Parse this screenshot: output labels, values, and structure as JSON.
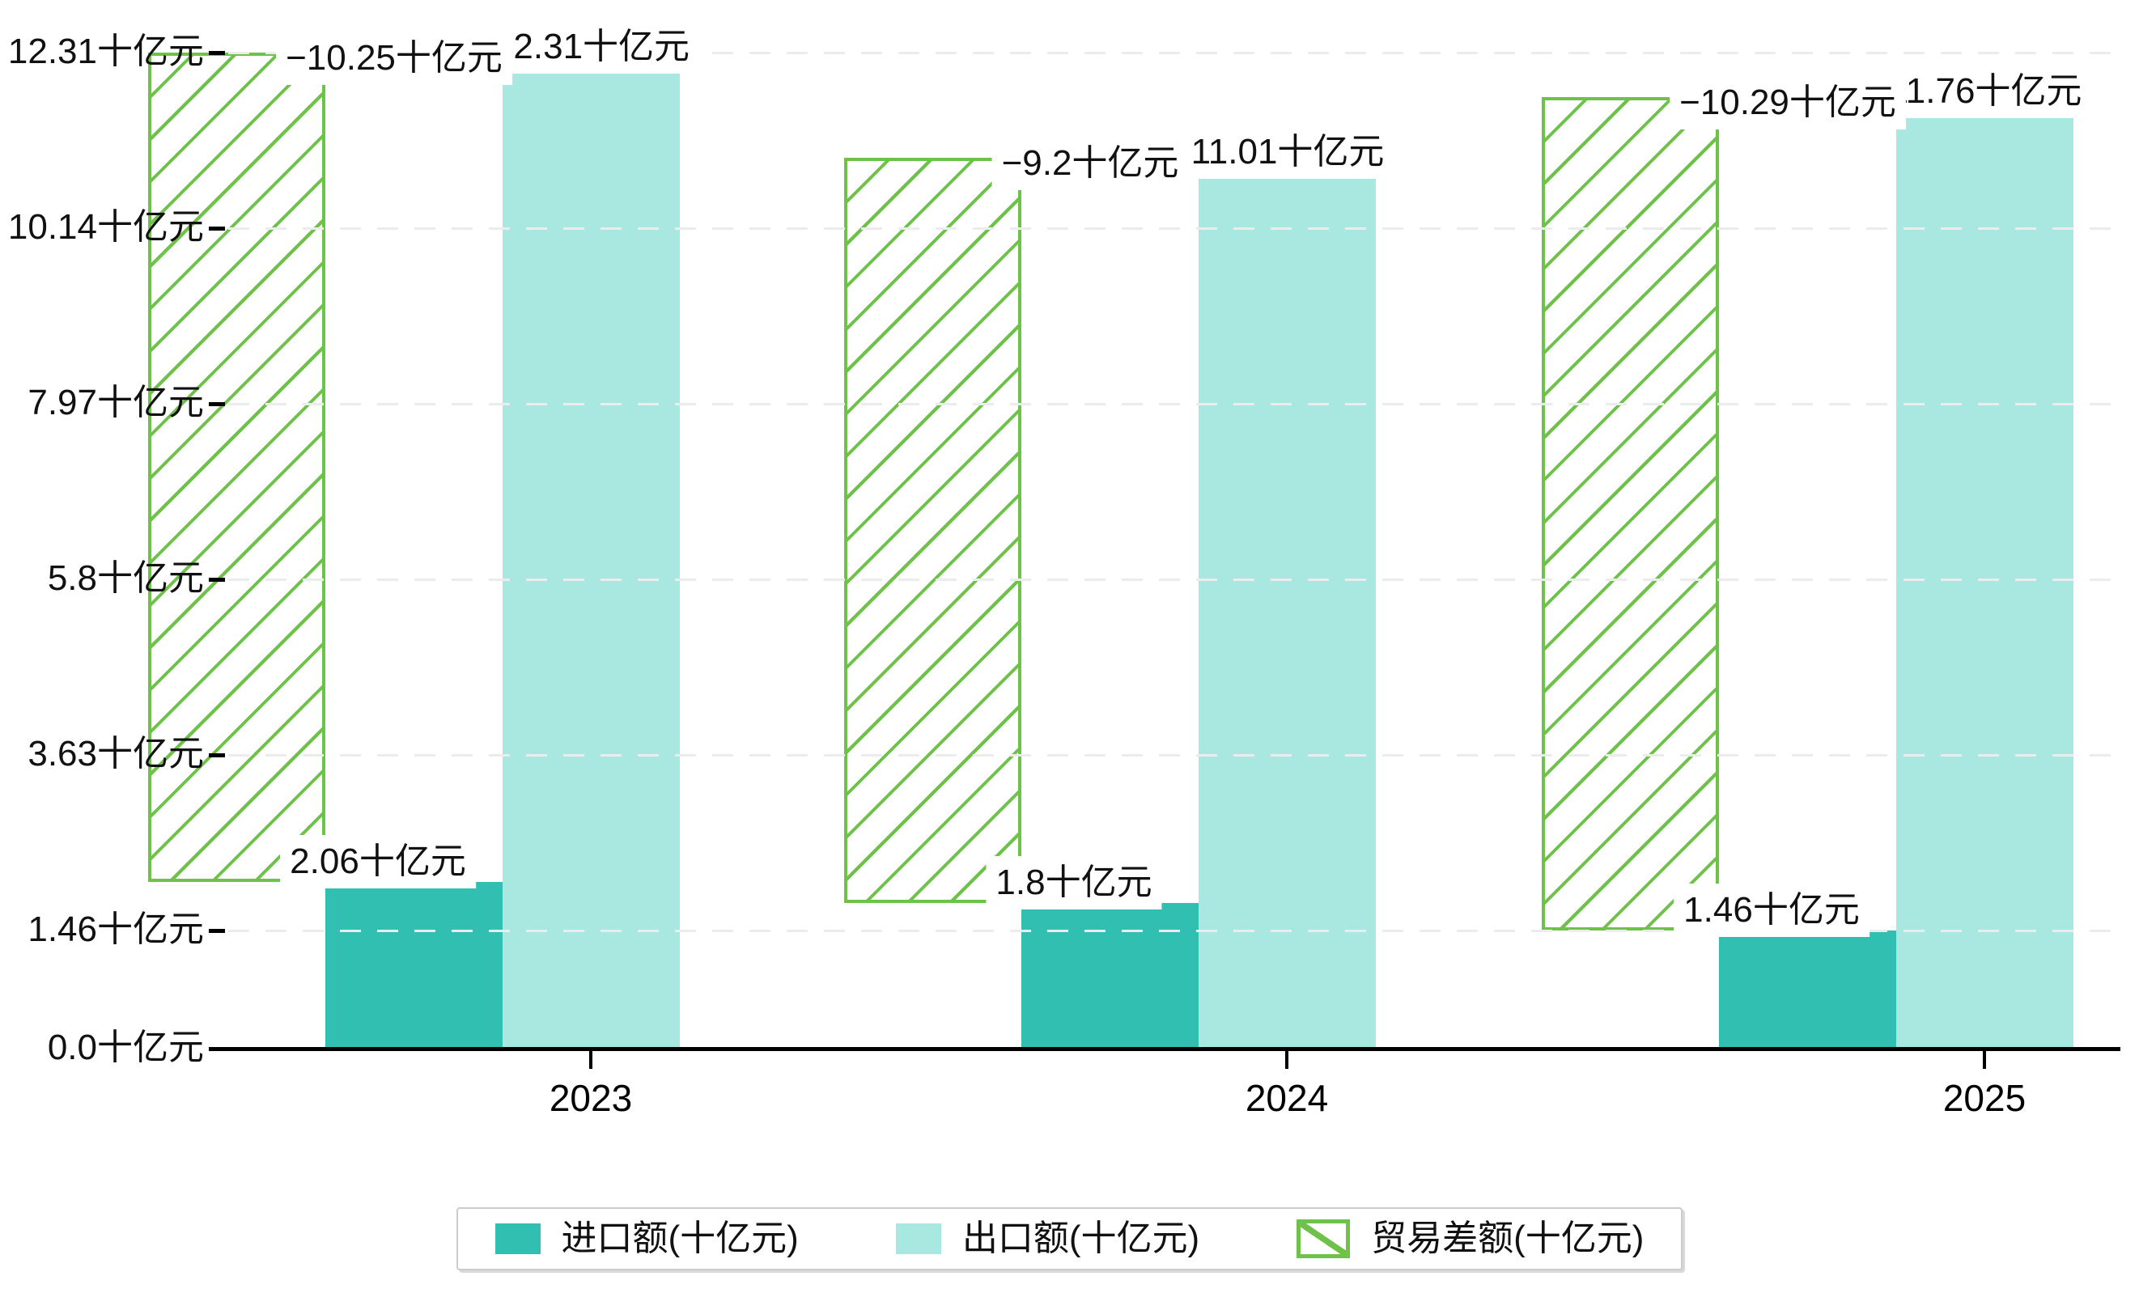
{
  "chart_data": {
    "type": "bar",
    "title": "",
    "categories": [
      "2023",
      "2024",
      "2025"
    ],
    "series": [
      {
        "name": "进口额(十亿元)",
        "role": "import",
        "values": [
          2.06,
          1.8,
          1.46
        ],
        "labels": [
          "2.06十亿元",
          "1.8十亿元",
          "1.46十亿元"
        ],
        "color": "#31bfb2",
        "pattern": "solid"
      },
      {
        "name": "出口额(十亿元)",
        "role": "export",
        "values": [
          12.31,
          11.01,
          11.76
        ],
        "labels": [
          "12.31十亿元",
          "11.01十亿元",
          "11.76十亿元"
        ],
        "labels_visible_after_overlap": [
          ".31十亿元",
          "1.01十亿元",
          ".76十亿元"
        ],
        "color": "#a9e8e0",
        "pattern": "solid"
      },
      {
        "name": "贸易差额(十亿元)",
        "role": "balance",
        "values": [
          -10.25,
          -9.2,
          -10.29
        ],
        "labels": [
          "−10.25十亿元",
          "−9.2十亿元",
          "−10.29十亿元"
        ],
        "color": "#6ec149",
        "pattern": "diagonal-hatch",
        "bar_style": "floating bar spanning from import bar top to export bar top, white fill with green / hatching and green border"
      }
    ],
    "y_axis": {
      "range": [
        0,
        12.31
      ],
      "gridlines": "dashed-horizontal-light-gray",
      "ticks": [
        {
          "value": 0,
          "label": "0.0十亿元"
        },
        {
          "value": 1.46,
          "label": "1.46十亿元"
        },
        {
          "value": 3.63,
          "label": "3.63十亿元"
        },
        {
          "value": 5.8,
          "label": "5.8十亿元"
        },
        {
          "value": 7.97,
          "label": "7.97十亿元"
        },
        {
          "value": 10.14,
          "label": "10.14十亿元"
        },
        {
          "value": 12.31,
          "label": "12.31十亿元"
        }
      ]
    },
    "x_axis": {
      "labels": [
        "2023",
        "2024",
        "2025"
      ]
    },
    "legend": {
      "position": "bottom-center",
      "entries": [
        "进口额(十亿元)",
        "出口额(十亿元)",
        "贸易差额(十亿元)"
      ]
    }
  },
  "colors": {
    "import": "#31bfb2",
    "export": "#a9e8e0",
    "balance_green": "#6ec149",
    "grid": "#ececec",
    "axis": "#000000",
    "label_text": "#111111",
    "label_bg": "#ffffff",
    "legend_border": "#cccccc",
    "background": "#ffffff"
  }
}
